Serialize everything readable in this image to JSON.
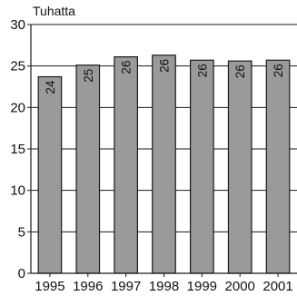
{
  "chart_data": {
    "type": "bar",
    "title": "",
    "unit_label": "Tuhatta",
    "xlabel": "",
    "ylabel": "",
    "categories": [
      "1995",
      "1996",
      "1997",
      "1998",
      "1999",
      "2000",
      "2001"
    ],
    "values": [
      23.7,
      25.1,
      26.1,
      26.3,
      25.7,
      25.6,
      25.7
    ],
    "data_labels": [
      "24",
      "25",
      "26",
      "26",
      "26",
      "26",
      "26"
    ],
    "ylim": [
      0,
      30
    ],
    "yticks": [
      0,
      5,
      10,
      15,
      20,
      25,
      30
    ],
    "grid": true,
    "legend": "none",
    "bar_color": "#9a9a9a",
    "edge_color": "#1a1a1a",
    "grid_color": "#1a1a1a"
  }
}
